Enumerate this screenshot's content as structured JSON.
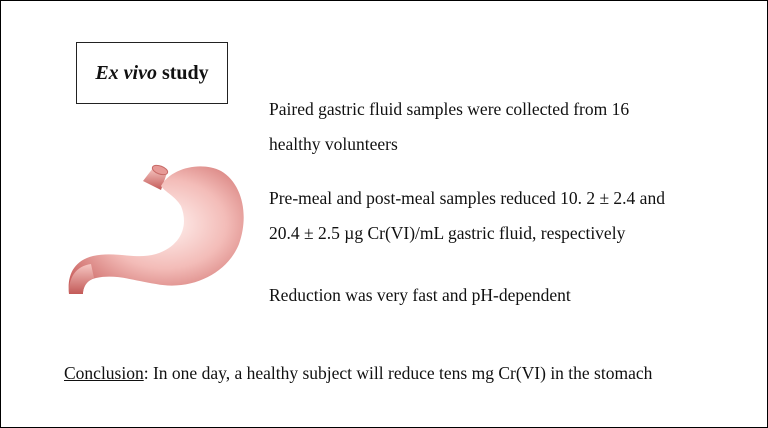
{
  "title": {
    "italic": "Ex vivo",
    "rest": " study"
  },
  "findings": [
    "Paired gastric fluid samples were collected from 16",
    "healthy volunteers",
    "Pre-meal and post-meal samples reduced 10. 2 ± 2.4 and",
    "20.4 ± 2.5 µg Cr(VI)/mL gastric fluid, respectively",
    "Reduction was very fast and pH-dependent"
  ],
  "conclusion": {
    "label": "Conclusion",
    "text": ": In one day, a healthy subject will reduce tens mg Cr(VI) in the stomach"
  },
  "illustration": {
    "icon": "stomach-icon",
    "colors": {
      "body": "#f2b3b0",
      "highlight": "#fde8e6",
      "shadow": "#c9605e"
    }
  }
}
